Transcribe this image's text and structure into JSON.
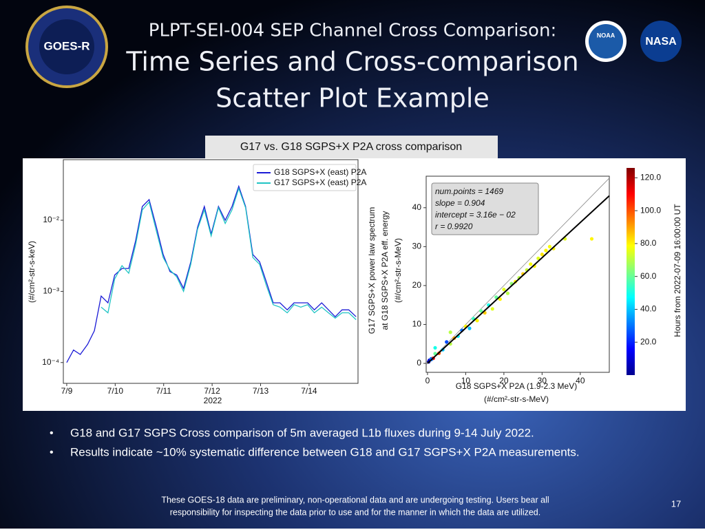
{
  "header": {
    "line1": "PLPT-SEI-004 SEP Channel Cross Comparison:",
    "line2": "Time Series and Cross-comparison",
    "line3": "Scatter Plot Example"
  },
  "logos": {
    "goes": "GOES-R",
    "noaa": "NOAA",
    "nasa": "NASA"
  },
  "caption": "G17 vs. G18 SGPS+X P2A cross comparison",
  "chart_data": [
    {
      "type": "line",
      "xlabel": "2022",
      "ylabel": "(#/cm²-str-s-keV)",
      "log_y": true,
      "x": [
        9.0,
        9.14,
        9.28,
        9.43,
        9.57,
        9.71,
        9.85,
        9.99,
        10.14,
        10.28,
        10.42,
        10.56,
        10.7,
        10.85,
        10.99,
        11.13,
        11.27,
        11.41,
        11.56,
        11.7,
        11.84,
        11.98,
        12.13,
        12.27,
        12.41,
        12.55,
        12.69,
        12.84,
        12.98,
        13.12,
        13.26,
        13.4,
        13.55,
        13.69,
        13.83,
        13.97,
        14.11,
        14.26,
        14.4,
        14.54,
        14.68,
        14.82,
        14.97
      ],
      "series": [
        {
          "name": "G18 SGPS+X (east) P2A",
          "color": "#1a1ad6",
          "values": [
            0.0001,
            0.00015,
            0.00013,
            0.00018,
            0.00028,
            0.00086,
            0.00069,
            0.0017,
            0.0021,
            0.0021,
            0.0051,
            0.0156,
            0.0195,
            0.008,
            0.0033,
            0.0019,
            0.0017,
            0.0011,
            0.0026,
            0.008,
            0.0156,
            0.0064,
            0.0156,
            0.01,
            0.0156,
            0.03,
            0.0156,
            0.0033,
            0.0026,
            0.00135,
            0.00069,
            0.00069,
            0.00055,
            0.00069,
            0.00069,
            0.00069,
            0.00055,
            0.00069,
            0.00055,
            0.00044,
            0.00055,
            0.00055,
            0.00044
          ]
        },
        {
          "name": "G17 SGPS+X (east) P2A",
          "color": "#1fc4c4",
          "values": [
            null,
            null,
            null,
            null,
            null,
            0.0006,
            0.0005,
            0.0015,
            0.0023,
            0.0018,
            0.0045,
            0.014,
            0.018,
            0.007,
            0.003,
            0.002,
            0.0016,
            0.001,
            0.0024,
            0.0075,
            0.014,
            0.006,
            0.015,
            0.009,
            0.014,
            0.028,
            0.015,
            0.003,
            0.0024,
            0.0012,
            0.00065,
            0.0006,
            0.0005,
            0.00065,
            0.0006,
            0.00065,
            0.0005,
            0.0006,
            0.0005,
            0.00042,
            0.0005,
            0.0005,
            0.0004
          ]
        }
      ],
      "xlim": [
        8.93,
        15.01
      ],
      "xticks": [
        {
          "value": 9,
          "label": "7/9"
        },
        {
          "value": 10,
          "label": "7/10"
        },
        {
          "value": 11,
          "label": "7/11"
        },
        {
          "value": 12,
          "label": "7/12"
        },
        {
          "value": 13,
          "label": "7/13"
        },
        {
          "value": 14,
          "label": "7/14"
        }
      ],
      "ylim": [
        5.1e-05,
        0.071
      ],
      "yticks": [
        {
          "value": 0.0001,
          "label": "10⁻⁴"
        },
        {
          "value": 0.001,
          "label": "10⁻³"
        },
        {
          "value": 0.01,
          "label": "10⁻²"
        }
      ],
      "legend": "upper right"
    },
    {
      "type": "scatter",
      "xlabel": [
        "G18 SGPS+X P2A (1.9-2.3 MeV)",
        "(#/cm²-str-s-MeV)"
      ],
      "ylabel": [
        "G17 SGPS+X power law spectrum",
        "at G18 SGPS+X P2A eff. energy",
        "(#/cm²-str-s-MeV)"
      ],
      "annotation": [
        "num.points = 1469",
        "slope = 0.904",
        "intercept = 3.16e − 02",
        "r = 0.9920"
      ],
      "fit": {
        "slope": 0.904,
        "intercept": 0.0316
      },
      "x": [
        0.3,
        0.5,
        1,
        1.5,
        2,
        3,
        4,
        5,
        6,
        7,
        8,
        9,
        10,
        11,
        12,
        13,
        14,
        15,
        16,
        17,
        18,
        19,
        20,
        21,
        22,
        23,
        24,
        25,
        26,
        27,
        28,
        29,
        30,
        31,
        32,
        33,
        36,
        43,
        2,
        6,
        1
      ],
      "y": [
        0.4,
        0.8,
        1.2,
        1.3,
        2.5,
        2.6,
        3.5,
        5.5,
        5,
        6.5,
        7,
        8.5,
        9.5,
        9,
        11.5,
        11,
        13.5,
        13,
        15,
        14,
        17,
        16.5,
        19,
        18,
        20.5,
        21,
        22,
        23,
        24,
        25.5,
        25,
        27,
        28,
        29,
        30,
        29.5,
        32,
        32,
        4,
        8,
        1
      ],
      "c": [
        5,
        10,
        30,
        110,
        60,
        100,
        40,
        25,
        70,
        90,
        45,
        30,
        80,
        40,
        55,
        80,
        60,
        85,
        50,
        75,
        60,
        80,
        75,
        70,
        65,
        80,
        70,
        85,
        72,
        78,
        80,
        75,
        82,
        80,
        78,
        80,
        75,
        80,
        50,
        70,
        30
      ],
      "xlim": [
        -0.35,
        47.6
      ],
      "xticks": [
        0,
        10,
        20,
        30,
        40
      ],
      "ylim": [
        -2.3,
        48.1
      ],
      "yticks": [
        0,
        10,
        20,
        30,
        40
      ],
      "colorbar": {
        "label": "Hours from 2022-07-09 16:00:00 UT",
        "clim": [
          0,
          126
        ],
        "ticks": [
          {
            "value": 20,
            "label": "20.0"
          },
          {
            "value": 40,
            "label": "40.0"
          },
          {
            "value": 60,
            "label": "60.0"
          },
          {
            "value": 80,
            "label": "80.0"
          },
          {
            "value": 100,
            "label": "100.0"
          },
          {
            "value": 120,
            "label": "120.0"
          }
        ]
      }
    }
  ],
  "bullets": [
    "G18 and G17 SGPS Cross comparison of 5m averaged L1b fluxes during 9-14 July 2022.",
    "Results indicate ~10% systematic difference between G18 and G17 SGPS+X P2A measurements."
  ],
  "footer": [
    "These GOES-18 data are preliminary, non-operational data and are undergoing testing. Users bear all",
    "responsibility for inspecting the data prior to use and for the manner in which the data are utilized."
  ],
  "page_number": "17"
}
